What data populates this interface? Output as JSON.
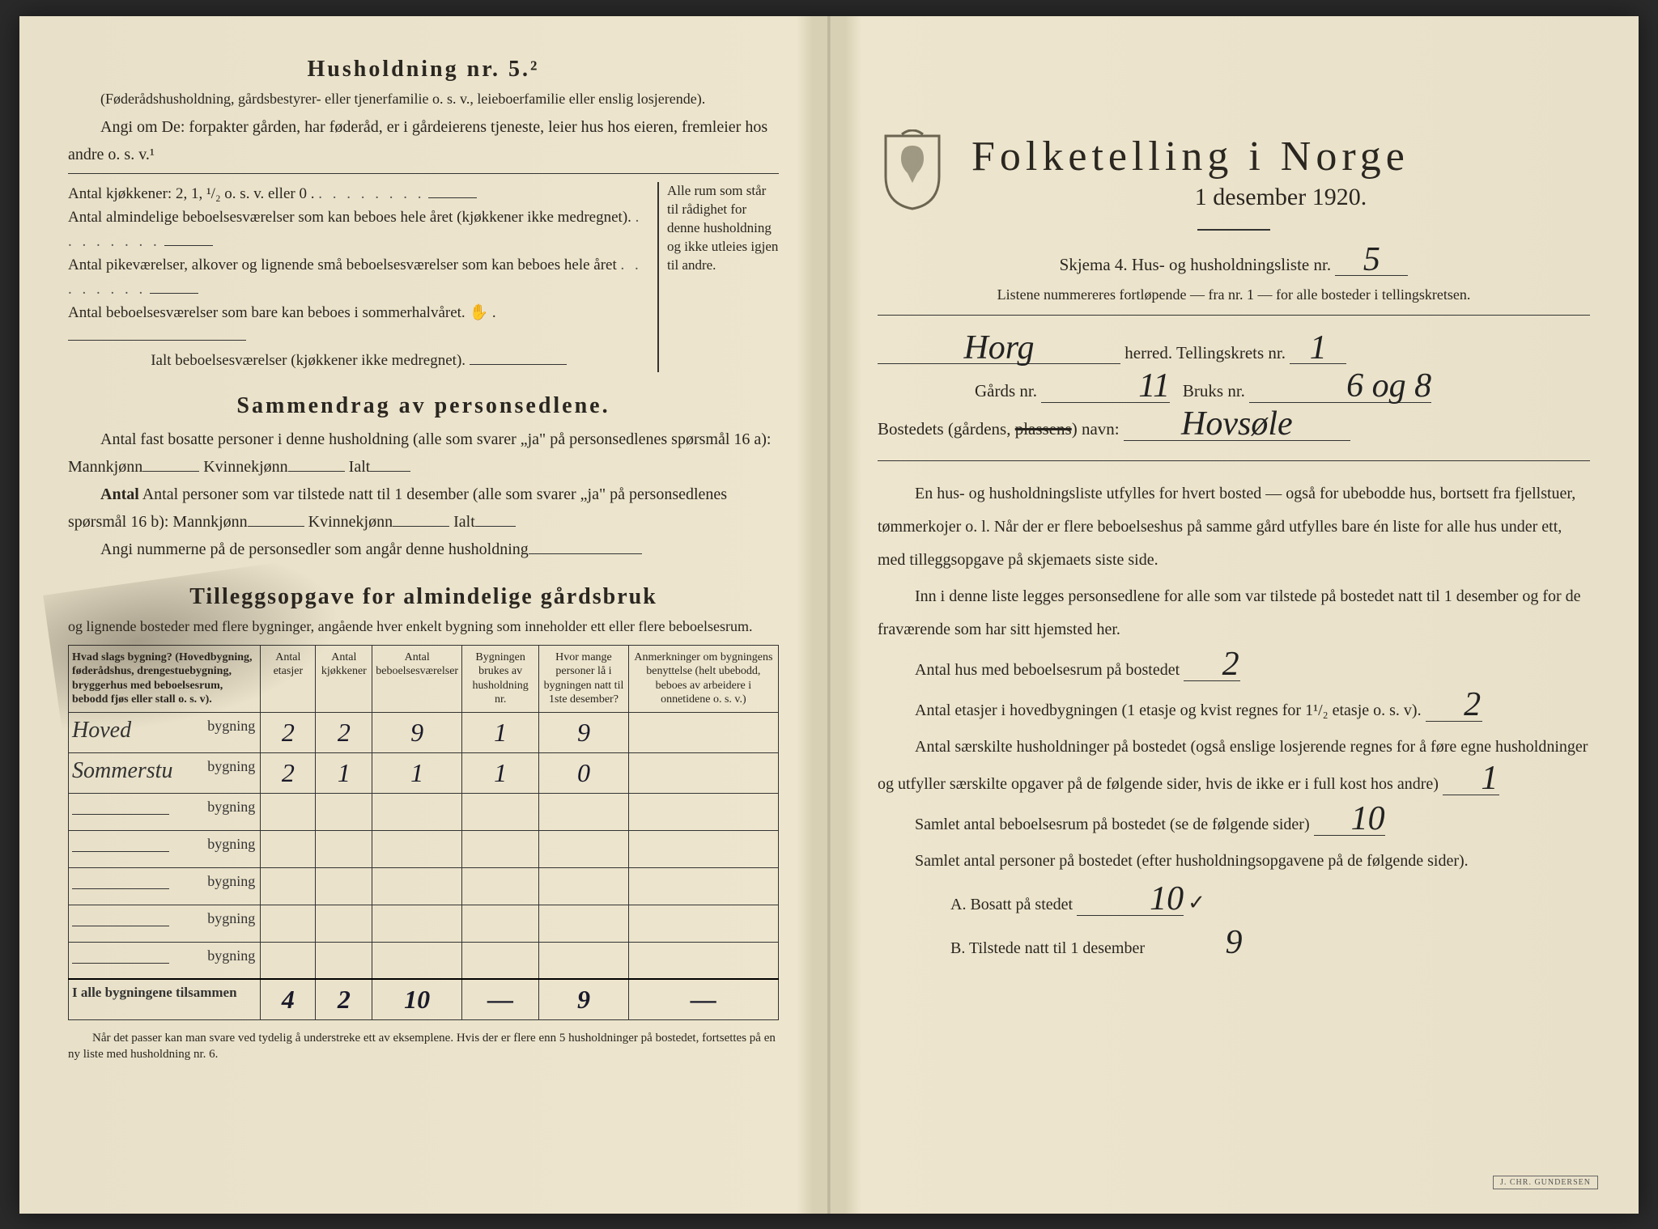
{
  "left": {
    "heading": "Husholdning nr. 5.²",
    "sub1": "(Føderådshusholdning, gårdsbestyrer- eller tjenerfamilie o. s. v., leieboerfamilie eller enslig losjerende).",
    "sub2": "Angi om De: forpakter gården, har føderåd, er i gårdeierens tjeneste, leier hus hos eieren, fremleier hos andre o. s. v.¹",
    "kitchens": "Antal kjøkkener: 2, 1, ¹/₂ o. s. v. eller 0 .",
    "rooms1": "Antal almindelige beboelsesværelser som kan beboes hele året (kjøkkener ikke medregnet).",
    "rooms2": "Antal pikeværelser, alkover og lignende små beboelsesværelser som kan beboes hele året",
    "rooms3": "Antal beboelsesværelser som bare kan beboes i sommerhalvåret.",
    "rooms_total": "Ialt beboelsesværelser (kjøkkener ikke medregnet).",
    "brace_note": "Alle rum som står til rådighet for denne husholdning og ikke utleies igjen til andre.",
    "summary_heading": "Sammendrag av personsedlene.",
    "summary1": "Antal fast bosatte personer i denne husholdning (alle som svarer „ja\" på personsedlenes spørsmål 16 a): Mannkjønn",
    "kvinne": "Kvinnekjønn",
    "ialt": "Ialt",
    "summary2": "Antal personer som var tilstede natt til 1 desember (alle som svarer „ja\" på personsedlenes spørsmål 16 b): Mannkjønn",
    "summary3": "Angi nummerne på de personsedler som angår denne husholdning",
    "tillegg_heading": "Tilleggsopgave for almindelige gårdsbruk",
    "tillegg_sub": "og lignende bosteder med flere bygninger, angående hver enkelt bygning som inneholder ett eller flere beboelsesrum.",
    "table": {
      "headers": [
        "Hvad slags bygning?\n(Hovedbygning, føderådshus, drengestuebygning, bryggerhus med beboelsesrum, bebodd fjøs eller stall o. s. v).",
        "Antal etasjer",
        "Antal kjøkkener",
        "Antal beboelsesværelser",
        "Bygningen brukes av husholdning nr.",
        "Hvor mange personer lå i bygningen natt til 1ste desember?",
        "Anmerkninger om bygningens benyttelse (helt ubebodd, beboes av arbeidere i onnetidene o. s. v.)"
      ],
      "rows": [
        {
          "label": "Hoved",
          "suffix": "bygning",
          "c": [
            "2",
            "2",
            "9",
            "1",
            "9",
            ""
          ]
        },
        {
          "label": "Sommerstu",
          "suffix": "bygning",
          "c": [
            "2",
            "1",
            "1",
            "1",
            "0",
            ""
          ]
        },
        {
          "label": "",
          "suffix": "bygning",
          "c": [
            "",
            "",
            "",
            "",
            "",
            ""
          ]
        },
        {
          "label": "",
          "suffix": "bygning",
          "c": [
            "",
            "",
            "",
            "",
            "",
            ""
          ]
        },
        {
          "label": "",
          "suffix": "bygning",
          "c": [
            "",
            "",
            "",
            "",
            "",
            ""
          ]
        },
        {
          "label": "",
          "suffix": "bygning",
          "c": [
            "",
            "",
            "",
            "",
            "",
            ""
          ]
        },
        {
          "label": "",
          "suffix": "bygning",
          "c": [
            "",
            "",
            "",
            "",
            "",
            ""
          ]
        }
      ],
      "total_label": "I alle bygningene tilsammen",
      "total": [
        "4",
        "2",
        "10",
        "—",
        "9",
        "—"
      ]
    },
    "footnote": "Når det passer kan man svare ved tydelig å understreke ett av eksemplene.\nHvis der er flere enn 5 husholdninger på bostedet, fortsettes på en ny liste med husholdning nr. 6."
  },
  "right": {
    "title": "Folketelling i Norge",
    "date": "1 desember 1920.",
    "form_label": "Skjema 4.  Hus- og husholdningsliste nr.",
    "form_nr": "5",
    "list_note": "Listene nummereres fortløpende — fra nr. 1 — for alle bosteder i tellingskretsen.",
    "herred_val": "Horg",
    "herred_lbl": "herred.   Tellingskrets nr.",
    "krets_val": "1",
    "gard_lbl": "Gårds nr.",
    "gard_val": "11",
    "bruk_lbl": "Bruks nr.",
    "bruk_val": "6 og 8",
    "bosted_lbl": "Bostedets (gårdens,",
    "plassens": "plassens",
    "navn_lbl": ") navn:",
    "navn_val": "Hovsøle",
    "para1": "En hus- og husholdningsliste utfylles for hvert bosted — også for ubebodde hus, bortsett fra fjellstuer, tømmerkojer o. l.  Når der er flere beboelseshus på samme gård utfylles bare én liste for alle hus under ett, med tilleggsopgave på skjemaets siste side.",
    "para2": "Inn i denne liste legges personsedlene for alle som var tilstede på bostedet natt til 1 desember og for de fraværende som har sitt hjemsted her.",
    "q1": "Antal hus med beboelsesrum på bostedet",
    "q1v": "2",
    "q2": "Antal etasjer i hovedbygningen (1 etasje og kvist regnes for 1¹/₂ etasje o. s. v).",
    "q2v": "2",
    "q3": "Antal særskilte husholdninger på bostedet (også enslige losjerende regnes for å føre egne husholdninger og utfyller særskilte opgaver på de følgende sider, hvis de ikke er i full kost hos andre)",
    "q3v": "1",
    "q4": "Samlet antal beboelsesrum på bostedet (se de følgende sider)",
    "q4v": "10",
    "q5": "Samlet antal personer på bostedet (efter husholdningsopgavene på de følgende sider).",
    "qA": "A.  Bosatt på stedet",
    "qAv": "10",
    "qAcheck": "✓",
    "qB": "B.  Tilstede natt til 1 desember",
    "qBv": "9",
    "printer": "J. CHR. GUNDERSEN"
  },
  "colors": {
    "paper": "#e8e0c8",
    "ink": "#2a2620",
    "handwriting": "#1a1a2a"
  }
}
